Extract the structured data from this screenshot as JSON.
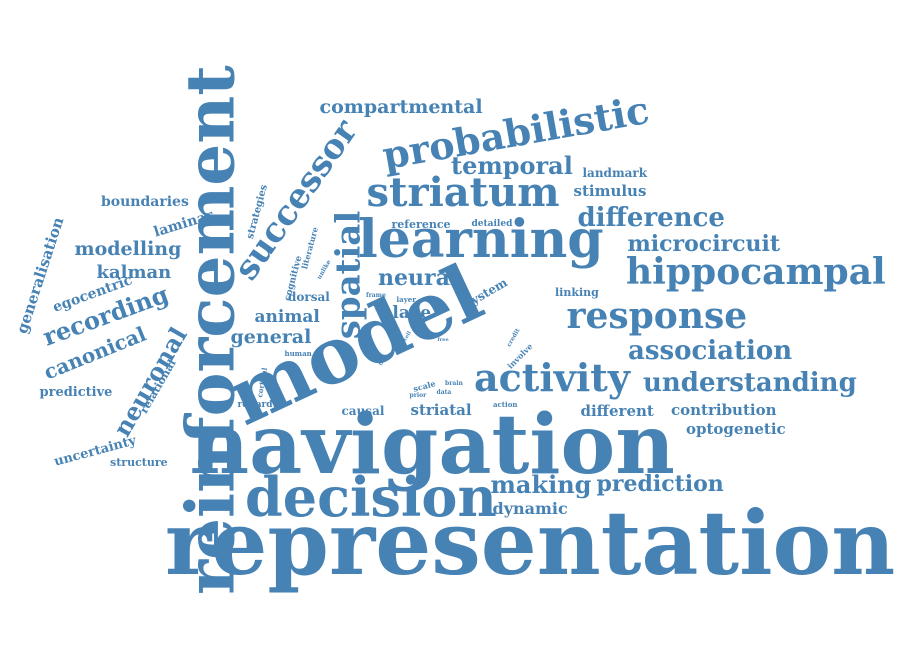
{
  "word_cloud": {
    "color": "#4682b4",
    "words": [
      {
        "text": "representation",
        "weight": 100
      },
      {
        "text": "navigation",
        "weight": 92
      },
      {
        "text": "reinforcement",
        "weight": 90
      },
      {
        "text": "model",
        "weight": 88
      },
      {
        "text": "learning",
        "weight": 72
      },
      {
        "text": "decision",
        "weight": 70
      },
      {
        "text": "probabilistic",
        "weight": 55
      },
      {
        "text": "striatum",
        "weight": 52
      },
      {
        "text": "activity",
        "weight": 48
      },
      {
        "text": "spatial",
        "weight": 46
      },
      {
        "text": "successor",
        "weight": 44
      },
      {
        "text": "hippocampal",
        "weight": 42
      },
      {
        "text": "response",
        "weight": 42
      },
      {
        "text": "making",
        "weight": 30
      },
      {
        "text": "association",
        "weight": 30
      },
      {
        "text": "understanding",
        "weight": 30
      },
      {
        "text": "prediction",
        "weight": 26
      },
      {
        "text": "difference",
        "weight": 30
      },
      {
        "text": "temporal",
        "weight": 28
      },
      {
        "text": "neuronal",
        "weight": 26
      },
      {
        "text": "recording",
        "weight": 26
      },
      {
        "text": "neural",
        "weight": 26
      },
      {
        "text": "microcircuit",
        "weight": 24
      },
      {
        "text": "compartmental",
        "weight": 22
      },
      {
        "text": "modelling",
        "weight": 22
      },
      {
        "text": "general",
        "weight": 22
      },
      {
        "text": "place",
        "weight": 20
      },
      {
        "text": "dynamic",
        "weight": 20
      },
      {
        "text": "animal",
        "weight": 20
      },
      {
        "text": "canonical",
        "weight": 20
      },
      {
        "text": "kalman",
        "weight": 20
      },
      {
        "text": "stimulus",
        "weight": 18
      },
      {
        "text": "generalisation",
        "weight": 18
      },
      {
        "text": "striatal",
        "weight": 18
      },
      {
        "text": "optogenetic",
        "weight": 18
      },
      {
        "text": "contribution",
        "weight": 18
      },
      {
        "text": "different",
        "weight": 18
      },
      {
        "text": "boundaries",
        "weight": 17
      },
      {
        "text": "laminar",
        "weight": 16
      },
      {
        "text": "egocentric",
        "weight": 16
      },
      {
        "text": "uncertainty",
        "weight": 16
      },
      {
        "text": "predictive",
        "weight": 16
      },
      {
        "text": "landmark",
        "weight": 14
      },
      {
        "text": "causal",
        "weight": 14
      },
      {
        "text": "dorsal",
        "weight": 14
      },
      {
        "text": "system",
        "weight": 14
      },
      {
        "text": "linking",
        "weight": 13
      },
      {
        "text": "relational",
        "weight": 13
      },
      {
        "text": "structure",
        "weight": 12
      },
      {
        "text": "reference",
        "weight": 12
      },
      {
        "text": "strategies",
        "weight": 12
      },
      {
        "text": "cognitive",
        "weight": 11
      },
      {
        "text": "detailed",
        "weight": 11
      },
      {
        "text": "reward",
        "weight": 11
      },
      {
        "text": "literature",
        "weight": 10
      },
      {
        "text": "involve",
        "weight": 10
      },
      {
        "text": "scale",
        "weight": 10
      },
      {
        "text": "human",
        "weight": 9
      },
      {
        "text": "cortical",
        "weight": 9
      },
      {
        "text": "action",
        "weight": 9
      },
      {
        "text": "layer",
        "weight": 9
      },
      {
        "text": "frame",
        "weight": 8
      },
      {
        "text": "unlike",
        "weight": 8
      },
      {
        "text": "brain",
        "weight": 8
      },
      {
        "text": "data",
        "weight": 8
      },
      {
        "text": "credit",
        "weight": 7
      },
      {
        "text": "prior",
        "weight": 7
      },
      {
        "text": "free",
        "weight": 7
      },
      {
        "text": "cell",
        "weight": 7
      },
      {
        "text": "mas",
        "weight": 7
      },
      {
        "text": "task",
        "weight": 7
      }
    ]
  }
}
